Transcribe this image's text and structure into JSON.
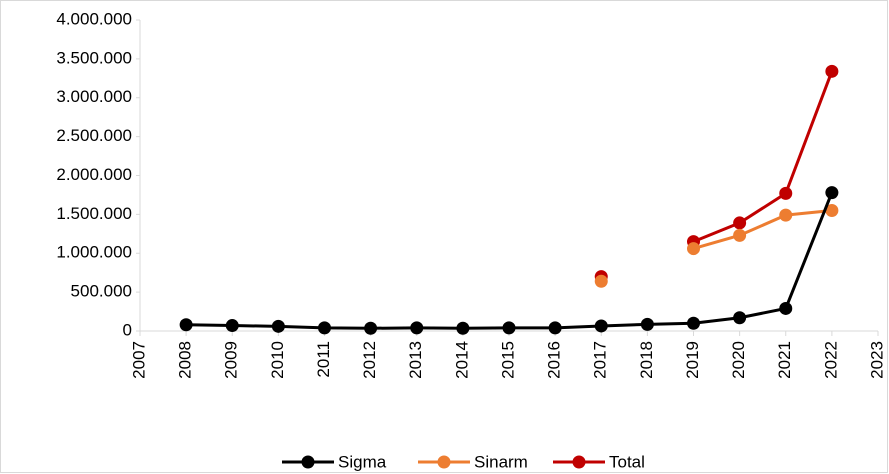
{
  "chart_data": {
    "type": "line",
    "x": [
      2008,
      2009,
      2010,
      2011,
      2012,
      2013,
      2014,
      2015,
      2016,
      2017,
      2018,
      2019,
      2020,
      2021,
      2022
    ],
    "series": [
      {
        "name": "Sigma",
        "color": "#000000",
        "values": [
          80000,
          70000,
          60000,
          40000,
          35000,
          40000,
          35000,
          40000,
          40000,
          65000,
          85000,
          100000,
          170000,
          290000,
          1780000
        ]
      },
      {
        "name": "Sinarm",
        "color": "#ED7D31",
        "values": [
          null,
          null,
          null,
          null,
          null,
          null,
          null,
          null,
          null,
          640000,
          null,
          1060000,
          1230000,
          1490000,
          1550000
        ]
      },
      {
        "name": "Total",
        "color": "#C00000",
        "values": [
          null,
          null,
          null,
          null,
          null,
          null,
          null,
          null,
          null,
          700000,
          null,
          1150000,
          1390000,
          1770000,
          3340000
        ]
      }
    ],
    "xlim": [
      2007,
      2023
    ],
    "xticks": [
      2007,
      2008,
      2009,
      2010,
      2011,
      2012,
      2013,
      2014,
      2015,
      2016,
      2017,
      2018,
      2019,
      2020,
      2021,
      2022,
      2023
    ],
    "ylim": [
      0,
      4000000
    ],
    "yticks": [
      0,
      {
        "value": 500000,
        "label": "500.000"
      },
      {
        "value": 1000000,
        "label": "1.000.000"
      },
      {
        "value": 1500000,
        "label": "1.500.000"
      },
      {
        "value": 2000000,
        "label": "2.000.000"
      },
      {
        "value": 2500000,
        "label": "2.500.000"
      },
      {
        "value": 3000000,
        "label": "3.000.000"
      },
      {
        "value": 3500000,
        "label": "3.500.000"
      },
      {
        "value": 4000000,
        "label": "4.000.000"
      }
    ],
    "grid": false,
    "legend": "bottom"
  }
}
